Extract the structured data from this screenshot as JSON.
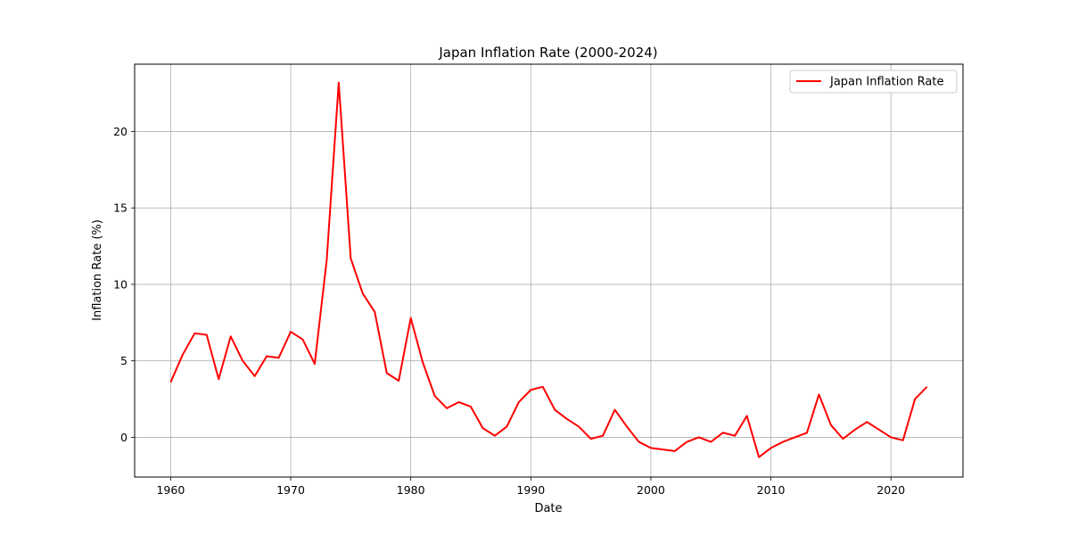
{
  "chart_data": {
    "type": "line",
    "title": "Japan Inflation Rate (2000-2024)",
    "xlabel": "Date",
    "ylabel": "Inflation Rate (%)",
    "xlim": [
      1957,
      2026
    ],
    "ylim": [
      -2.6,
      24.4
    ],
    "xticks": [
      1960,
      1970,
      1980,
      1990,
      2000,
      2010,
      2020
    ],
    "yticks": [
      0,
      5,
      10,
      15,
      20
    ],
    "grid": true,
    "legend_position": "top-right",
    "x": [
      1960,
      1961,
      1962,
      1963,
      1964,
      1965,
      1966,
      1967,
      1968,
      1969,
      1970,
      1971,
      1972,
      1973,
      1974,
      1975,
      1976,
      1977,
      1978,
      1979,
      1980,
      1981,
      1982,
      1983,
      1984,
      1985,
      1986,
      1987,
      1988,
      1989,
      1990,
      1991,
      1992,
      1993,
      1994,
      1995,
      1996,
      1997,
      1998,
      1999,
      2000,
      2001,
      2002,
      2003,
      2004,
      2005,
      2006,
      2007,
      2008,
      2009,
      2010,
      2011,
      2012,
      2013,
      2014,
      2015,
      2016,
      2017,
      2018,
      2019,
      2020,
      2021,
      2022,
      2023
    ],
    "series": [
      {
        "name": "Japan Inflation Rate",
        "color": "#ff0000",
        "values": [
          3.6,
          5.4,
          6.8,
          6.7,
          3.8,
          6.6,
          5.0,
          4.0,
          5.3,
          5.2,
          6.9,
          6.4,
          4.8,
          11.6,
          23.2,
          11.7,
          9.4,
          8.2,
          4.2,
          3.7,
          7.8,
          4.9,
          2.7,
          1.9,
          2.3,
          2.0,
          0.6,
          0.1,
          0.7,
          2.3,
          3.1,
          3.3,
          1.8,
          1.2,
          0.7,
          -0.1,
          0.1,
          1.8,
          0.7,
          -0.3,
          -0.7,
          -0.8,
          -0.9,
          -0.3,
          0.0,
          -0.3,
          0.3,
          0.1,
          1.4,
          -1.3,
          -0.7,
          -0.3,
          0.0,
          0.3,
          2.8,
          0.8,
          -0.1,
          0.5,
          1.0,
          0.5,
          0.0,
          -0.2,
          2.5,
          3.3
        ]
      }
    ]
  }
}
